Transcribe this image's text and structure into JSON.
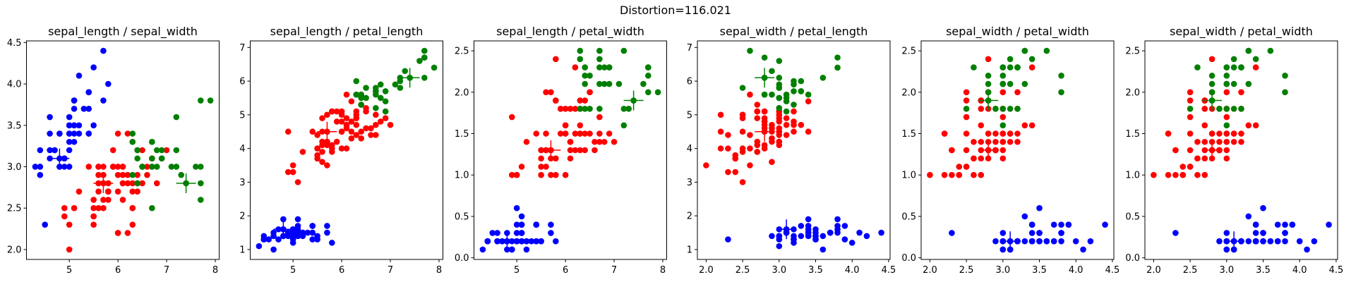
{
  "suptitle": "Distortion=116.021",
  "chart_data": {
    "type": "scatter",
    "features": [
      "sepal_length",
      "sepal_width",
      "petal_length",
      "petal_width"
    ],
    "cluster_colors": [
      "#0000ff",
      "#ff0000",
      "#008000"
    ],
    "centroid_marker": "plus",
    "centroids": [
      [
        4.8,
        3.1,
        1.6,
        0.2
      ],
      [
        5.7,
        2.8,
        4.5,
        1.3
      ],
      [
        7.4,
        2.8,
        6.1,
        1.9
      ]
    ],
    "points": [
      [
        5.1,
        3.5,
        1.4,
        0.2
      ],
      [
        4.9,
        3.0,
        1.4,
        0.2
      ],
      [
        4.7,
        3.2,
        1.3,
        0.2
      ],
      [
        4.6,
        3.1,
        1.5,
        0.2
      ],
      [
        5.0,
        3.6,
        1.4,
        0.2
      ],
      [
        5.4,
        3.9,
        1.7,
        0.4
      ],
      [
        4.6,
        3.4,
        1.4,
        0.3
      ],
      [
        5.0,
        3.4,
        1.5,
        0.2
      ],
      [
        4.4,
        2.9,
        1.4,
        0.2
      ],
      [
        4.9,
        3.1,
        1.5,
        0.1
      ],
      [
        5.4,
        3.7,
        1.5,
        0.2
      ],
      [
        4.8,
        3.4,
        1.6,
        0.2
      ],
      [
        4.8,
        3.0,
        1.4,
        0.1
      ],
      [
        4.3,
        3.0,
        1.1,
        0.1
      ],
      [
        5.8,
        4.0,
        1.2,
        0.2
      ],
      [
        5.7,
        4.4,
        1.5,
        0.4
      ],
      [
        5.4,
        3.9,
        1.3,
        0.4
      ],
      [
        5.1,
        3.5,
        1.4,
        0.3
      ],
      [
        5.7,
        3.8,
        1.7,
        0.3
      ],
      [
        5.1,
        3.8,
        1.5,
        0.3
      ],
      [
        5.4,
        3.4,
        1.7,
        0.2
      ],
      [
        5.1,
        3.7,
        1.5,
        0.4
      ],
      [
        4.6,
        3.6,
        1.0,
        0.2
      ],
      [
        5.1,
        3.3,
        1.7,
        0.5
      ],
      [
        4.8,
        3.4,
        1.9,
        0.2
      ],
      [
        5.0,
        3.0,
        1.6,
        0.2
      ],
      [
        5.0,
        3.4,
        1.6,
        0.4
      ],
      [
        5.2,
        3.5,
        1.5,
        0.2
      ],
      [
        5.2,
        3.4,
        1.4,
        0.2
      ],
      [
        4.7,
        3.2,
        1.6,
        0.2
      ],
      [
        4.8,
        3.1,
        1.6,
        0.2
      ],
      [
        5.4,
        3.4,
        1.5,
        0.4
      ],
      [
        5.2,
        4.1,
        1.5,
        0.1
      ],
      [
        5.5,
        4.2,
        1.4,
        0.2
      ],
      [
        4.9,
        3.1,
        1.5,
        0.1
      ],
      [
        5.0,
        3.2,
        1.2,
        0.2
      ],
      [
        5.5,
        3.5,
        1.3,
        0.2
      ],
      [
        4.9,
        3.1,
        1.5,
        0.1
      ],
      [
        4.4,
        3.0,
        1.3,
        0.2
      ],
      [
        5.1,
        3.4,
        1.5,
        0.2
      ],
      [
        5.0,
        3.5,
        1.3,
        0.3
      ],
      [
        4.5,
        2.3,
        1.3,
        0.3
      ],
      [
        4.4,
        3.2,
        1.3,
        0.2
      ],
      [
        5.0,
        3.5,
        1.6,
        0.6
      ],
      [
        5.1,
        3.8,
        1.9,
        0.4
      ],
      [
        4.8,
        3.0,
        1.4,
        0.3
      ],
      [
        5.1,
        3.8,
        1.6,
        0.2
      ],
      [
        4.6,
        3.2,
        1.4,
        0.2
      ],
      [
        5.3,
        3.7,
        1.5,
        0.2
      ],
      [
        5.0,
        3.3,
        1.4,
        0.2
      ],
      [
        7.0,
        3.2,
        4.7,
        1.4
      ],
      [
        6.4,
        3.2,
        4.5,
        1.5
      ],
      [
        6.9,
        3.1,
        4.9,
        1.5
      ],
      [
        5.5,
        2.3,
        4.0,
        1.3
      ],
      [
        6.5,
        2.8,
        4.6,
        1.5
      ],
      [
        5.7,
        2.8,
        4.5,
        1.3
      ],
      [
        6.3,
        3.3,
        4.7,
        1.6
      ],
      [
        4.9,
        2.4,
        3.3,
        1.0
      ],
      [
        6.6,
        2.9,
        4.6,
        1.3
      ],
      [
        5.2,
        2.7,
        3.9,
        1.4
      ],
      [
        5.0,
        2.0,
        3.5,
        1.0
      ],
      [
        5.9,
        3.0,
        4.2,
        1.5
      ],
      [
        6.0,
        2.2,
        4.0,
        1.0
      ],
      [
        6.1,
        2.9,
        4.7,
        1.4
      ],
      [
        5.6,
        2.9,
        3.6,
        1.3
      ],
      [
        6.7,
        3.1,
        4.4,
        1.4
      ],
      [
        5.6,
        3.0,
        4.5,
        1.5
      ],
      [
        5.8,
        2.7,
        4.1,
        1.0
      ],
      [
        6.2,
        2.2,
        4.5,
        1.5
      ],
      [
        5.6,
        2.5,
        3.9,
        1.1
      ],
      [
        5.9,
        3.2,
        4.8,
        1.8
      ],
      [
        6.1,
        2.8,
        4.0,
        1.3
      ],
      [
        6.3,
        2.5,
        4.9,
        1.5
      ],
      [
        6.1,
        2.8,
        4.7,
        1.2
      ],
      [
        6.4,
        2.9,
        4.3,
        1.3
      ],
      [
        6.6,
        3.0,
        4.4,
        1.4
      ],
      [
        6.8,
        2.8,
        4.8,
        1.4
      ],
      [
        6.7,
        3.0,
        5.0,
        1.7
      ],
      [
        6.0,
        2.9,
        4.5,
        1.5
      ],
      [
        5.7,
        2.6,
        3.5,
        1.0
      ],
      [
        5.5,
        2.4,
        3.8,
        1.1
      ],
      [
        5.5,
        2.4,
        3.7,
        1.0
      ],
      [
        5.8,
        2.7,
        3.9,
        1.2
      ],
      [
        6.0,
        2.7,
        5.1,
        1.6
      ],
      [
        5.4,
        3.0,
        4.5,
        1.5
      ],
      [
        6.0,
        3.4,
        4.5,
        1.6
      ],
      [
        6.7,
        3.1,
        4.7,
        1.5
      ],
      [
        6.3,
        2.3,
        4.4,
        1.3
      ],
      [
        5.6,
        3.0,
        4.1,
        1.3
      ],
      [
        5.5,
        2.5,
        4.0,
        1.3
      ],
      [
        5.5,
        2.6,
        4.4,
        1.2
      ],
      [
        6.1,
        3.0,
        4.6,
        1.4
      ],
      [
        5.8,
        2.6,
        4.0,
        1.2
      ],
      [
        5.0,
        2.3,
        3.3,
        1.0
      ],
      [
        5.6,
        2.7,
        4.2,
        1.3
      ],
      [
        5.7,
        3.0,
        4.2,
        1.2
      ],
      [
        5.7,
        2.9,
        4.2,
        1.3
      ],
      [
        6.2,
        2.9,
        4.3,
        1.3
      ],
      [
        5.1,
        2.5,
        3.0,
        1.1
      ],
      [
        5.7,
        2.8,
        4.1,
        1.3
      ],
      [
        6.3,
        3.3,
        6.0,
        2.5
      ],
      [
        5.8,
        2.7,
        5.1,
        1.9
      ],
      [
        7.1,
        3.0,
        5.9,
        2.1
      ],
      [
        6.3,
        2.9,
        5.6,
        1.8
      ],
      [
        6.5,
        3.0,
        5.8,
        2.2
      ],
      [
        7.6,
        3.0,
        6.6,
        2.1
      ],
      [
        4.9,
        2.5,
        4.5,
        1.7
      ],
      [
        7.3,
        2.9,
        6.3,
        1.8
      ],
      [
        6.7,
        2.5,
        5.8,
        1.8
      ],
      [
        7.2,
        3.6,
        6.1,
        2.5
      ],
      [
        6.5,
        3.2,
        5.1,
        2.0
      ],
      [
        6.4,
        2.7,
        5.3,
        1.9
      ],
      [
        6.8,
        3.0,
        5.5,
        2.1
      ],
      [
        5.7,
        2.5,
        5.0,
        2.0
      ],
      [
        5.8,
        2.8,
        5.1,
        2.4
      ],
      [
        6.4,
        3.2,
        5.3,
        2.3
      ],
      [
        6.5,
        3.0,
        5.5,
        1.8
      ],
      [
        7.7,
        3.8,
        6.7,
        2.2
      ],
      [
        7.7,
        2.6,
        6.9,
        2.3
      ],
      [
        6.0,
        2.2,
        5.0,
        1.5
      ],
      [
        6.9,
        3.2,
        5.7,
        2.3
      ],
      [
        5.6,
        2.8,
        4.9,
        2.0
      ],
      [
        7.7,
        2.8,
        6.7,
        2.0
      ],
      [
        6.3,
        2.7,
        4.9,
        1.8
      ],
      [
        6.7,
        3.3,
        5.7,
        2.1
      ],
      [
        7.2,
        3.2,
        6.0,
        1.8
      ],
      [
        6.2,
        2.8,
        4.8,
        1.8
      ],
      [
        6.1,
        3.0,
        4.9,
        1.8
      ],
      [
        6.4,
        2.8,
        5.6,
        2.1
      ],
      [
        7.2,
        3.0,
        5.8,
        1.6
      ],
      [
        7.4,
        2.8,
        6.1,
        1.9
      ],
      [
        7.9,
        3.8,
        6.4,
        2.0
      ],
      [
        6.4,
        2.8,
        5.6,
        2.2
      ],
      [
        6.3,
        2.8,
        5.1,
        1.5
      ],
      [
        6.1,
        2.6,
        5.6,
        1.4
      ],
      [
        7.7,
        3.0,
        6.1,
        2.3
      ],
      [
        6.3,
        3.4,
        5.6,
        2.4
      ],
      [
        6.4,
        3.1,
        5.5,
        1.8
      ],
      [
        6.0,
        3.0,
        4.8,
        1.8
      ],
      [
        6.9,
        3.1,
        5.4,
        2.1
      ],
      [
        6.7,
        3.1,
        5.6,
        2.4
      ],
      [
        6.9,
        3.1,
        5.1,
        2.3
      ],
      [
        5.8,
        2.7,
        5.1,
        1.9
      ],
      [
        6.8,
        3.2,
        5.9,
        2.3
      ],
      [
        6.7,
        3.3,
        5.7,
        2.5
      ],
      [
        6.7,
        3.0,
        5.2,
        2.3
      ],
      [
        6.3,
        2.5,
        5.0,
        1.9
      ],
      [
        6.5,
        3.0,
        5.2,
        2.0
      ],
      [
        6.2,
        3.4,
        5.4,
        2.3
      ],
      [
        5.9,
        3.0,
        5.1,
        1.8
      ]
    ],
    "labels": [
      0,
      0,
      0,
      0,
      0,
      0,
      0,
      0,
      0,
      0,
      0,
      0,
      0,
      0,
      0,
      0,
      0,
      0,
      0,
      0,
      0,
      0,
      0,
      0,
      0,
      0,
      0,
      0,
      0,
      0,
      0,
      0,
      0,
      0,
      0,
      0,
      0,
      0,
      0,
      0,
      0,
      0,
      0,
      0,
      0,
      0,
      0,
      0,
      0,
      0,
      1,
      1,
      1,
      1,
      1,
      1,
      1,
      1,
      1,
      1,
      1,
      1,
      1,
      1,
      1,
      1,
      1,
      1,
      1,
      1,
      1,
      1,
      1,
      1,
      1,
      1,
      1,
      1,
      1,
      1,
      1,
      1,
      1,
      1,
      1,
      1,
      1,
      1,
      1,
      1,
      1,
      1,
      1,
      1,
      1,
      1,
      1,
      1,
      1,
      1,
      2,
      1,
      2,
      2,
      2,
      2,
      1,
      2,
      2,
      2,
      1,
      1,
      2,
      1,
      1,
      2,
      2,
      2,
      2,
      1,
      2,
      1,
      2,
      1,
      2,
      2,
      1,
      1,
      2,
      2,
      2,
      2,
      2,
      1,
      1,
      2,
      2,
      2,
      1,
      2,
      2,
      2,
      1,
      2,
      2,
      2,
      1,
      1,
      1,
      1
    ],
    "subplots": [
      {
        "title": "sepal_length / sepal_width",
        "x": 0,
        "y": 1,
        "xlim": [
          4.12,
          8.08
        ],
        "ylim": [
          1.88,
          4.52
        ],
        "xticks": [
          {
            "v": 5,
            "label": "5"
          },
          {
            "v": 6,
            "label": "6"
          },
          {
            "v": 7,
            "label": "7"
          },
          {
            "v": 8,
            "label": "8"
          }
        ],
        "yticks": [
          {
            "v": 2.0,
            "label": "2.0"
          },
          {
            "v": 2.5,
            "label": "2.5"
          },
          {
            "v": 3.0,
            "label": "3.0"
          },
          {
            "v": 3.5,
            "label": "3.5"
          },
          {
            "v": 4.0,
            "label": "4.0"
          },
          {
            "v": 4.5,
            "label": "4.5"
          }
        ]
      },
      {
        "title": "sepal_length / petal_length",
        "x": 0,
        "y": 2,
        "xlim": [
          4.12,
          8.08
        ],
        "ylim": [
          0.705,
          7.195
        ],
        "xticks": [
          {
            "v": 5,
            "label": "5"
          },
          {
            "v": 6,
            "label": "6"
          },
          {
            "v": 7,
            "label": "7"
          },
          {
            "v": 8,
            "label": "8"
          }
        ],
        "yticks": [
          {
            "v": 1,
            "label": "1"
          },
          {
            "v": 2,
            "label": "2"
          },
          {
            "v": 3,
            "label": "3"
          },
          {
            "v": 4,
            "label": "4"
          },
          {
            "v": 5,
            "label": "5"
          },
          {
            "v": 6,
            "label": "6"
          },
          {
            "v": 7,
            "label": "7"
          }
        ]
      },
      {
        "title": "sepal_length / petal_width",
        "x": 0,
        "y": 3,
        "xlim": [
          4.12,
          8.08
        ],
        "ylim": [
          -0.02,
          2.62
        ],
        "xticks": [
          {
            "v": 5,
            "label": "5"
          },
          {
            "v": 6,
            "label": "6"
          },
          {
            "v": 7,
            "label": "7"
          },
          {
            "v": 8,
            "label": "8"
          }
        ],
        "yticks": [
          {
            "v": 0.0,
            "label": "0.0"
          },
          {
            "v": 0.5,
            "label": "0.5"
          },
          {
            "v": 1.0,
            "label": "1.0"
          },
          {
            "v": 1.5,
            "label": "1.5"
          },
          {
            "v": 2.0,
            "label": "2.0"
          },
          {
            "v": 2.5,
            "label": "2.5"
          }
        ]
      },
      {
        "title": "sepal_width / petal_length",
        "x": 1,
        "y": 2,
        "xlim": [
          1.88,
          4.52
        ],
        "ylim": [
          0.705,
          7.195
        ],
        "xticks": [
          {
            "v": 2.0,
            "label": "2.0"
          },
          {
            "v": 2.5,
            "label": "2.5"
          },
          {
            "v": 3.0,
            "label": "3.0"
          },
          {
            "v": 3.5,
            "label": "3.5"
          },
          {
            "v": 4.0,
            "label": "4.0"
          },
          {
            "v": 4.5,
            "label": "4.5"
          }
        ],
        "yticks": [
          {
            "v": 1,
            "label": "1"
          },
          {
            "v": 2,
            "label": "2"
          },
          {
            "v": 3,
            "label": "3"
          },
          {
            "v": 4,
            "label": "4"
          },
          {
            "v": 5,
            "label": "5"
          },
          {
            "v": 6,
            "label": "6"
          },
          {
            "v": 7,
            "label": "7"
          }
        ]
      },
      {
        "title": "sepal_width / petal_width",
        "x": 1,
        "y": 3,
        "xlim": [
          1.88,
          4.52
        ],
        "ylim": [
          -0.02,
          2.62
        ],
        "xticks": [
          {
            "v": 2.0,
            "label": "2.0"
          },
          {
            "v": 2.5,
            "label": "2.5"
          },
          {
            "v": 3.0,
            "label": "3.0"
          },
          {
            "v": 3.5,
            "label": "3.5"
          },
          {
            "v": 4.0,
            "label": "4.0"
          },
          {
            "v": 4.5,
            "label": "4.5"
          }
        ],
        "yticks": [
          {
            "v": 0.0,
            "label": "0.0"
          },
          {
            "v": 0.5,
            "label": "0.5"
          },
          {
            "v": 1.0,
            "label": "1.0"
          },
          {
            "v": 1.5,
            "label": "1.5"
          },
          {
            "v": 2.0,
            "label": "2.0"
          },
          {
            "v": 2.5,
            "label": "2.5"
          }
        ]
      },
      {
        "title": "sepal_width / petal_width",
        "x": 1,
        "y": 3,
        "xlim": [
          1.88,
          4.52
        ],
        "ylim": [
          -0.02,
          2.62
        ],
        "xticks": [
          {
            "v": 2.0,
            "label": "2.0"
          },
          {
            "v": 2.5,
            "label": "2.5"
          },
          {
            "v": 3.0,
            "label": "3.0"
          },
          {
            "v": 3.5,
            "label": "3.5"
          },
          {
            "v": 4.0,
            "label": "4.0"
          },
          {
            "v": 4.5,
            "label": "4.5"
          }
        ],
        "yticks": [
          {
            "v": 0.0,
            "label": "0.0"
          },
          {
            "v": 0.5,
            "label": "0.5"
          },
          {
            "v": 1.0,
            "label": "1.0"
          },
          {
            "v": 1.5,
            "label": "1.5"
          },
          {
            "v": 2.0,
            "label": "2.0"
          },
          {
            "v": 2.5,
            "label": "2.5"
          }
        ]
      }
    ]
  }
}
